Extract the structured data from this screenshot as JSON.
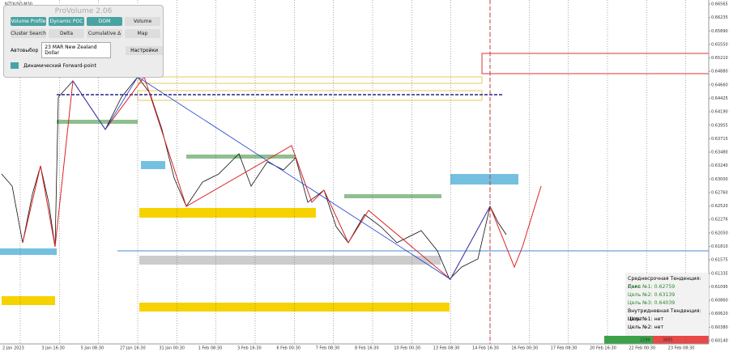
{
  "symbol": "NZDUSD,M30",
  "panel": {
    "title": "ProVolume 2.06",
    "buttons": [
      "Volume Profile",
      "Dynamic POC",
      "DOM",
      "Volume",
      "Cluster Search",
      "Delta",
      "Cumulative Δ",
      "Map"
    ],
    "auto_select": "Автовыбор",
    "instrument": "23 MAR New Zealand Dollar",
    "settings": "Настройки",
    "forward_point": "Динамический Forward-point"
  },
  "price_axis": [
    "0.66565",
    "0.66235",
    "0.65890",
    "0.65550",
    "0.65210",
    "0.64880",
    "0.64660",
    "0.64425",
    "0.64190",
    "0.63955",
    "0.63715",
    "0.63480",
    "0.63240",
    "0.63000",
    "0.62760",
    "0.62520",
    "0.62276",
    "0.62050",
    "0.61810",
    "0.61575",
    "0.61335",
    "0.61095",
    "0.60860",
    "0.60620",
    "0.60380",
    "0.60140"
  ],
  "time_axis": [
    "2 Jan 2023",
    "3 Jan 16:30",
    "5 Jan 08:30",
    "27 Jan 16:30",
    "31 Jan 00:30",
    "1 Feb 08:30",
    "3 Feb 16:30",
    "6 Feb 00:30",
    "7 Feb 08:30",
    "8 Feb 16:30",
    "10 Feb 00:30",
    "13 Feb 08:30",
    "14 Feb 16:30",
    "16 Feb 00:30",
    "17 Feb 08:30",
    "20 Feb 16:30",
    "22 Feb 00:30",
    "23 Feb 08:30"
  ],
  "info": [
    "Среднесрочная Тенденция: Лонг",
    "Цель №1: 0.62759",
    "Цель №2: 0.63139",
    "Цель №3: 0.64039",
    "Внутридневная Тенденция: Шорт",
    "Цель №1: нет",
    "Цель №2: нет"
  ],
  "footer": [
    "2294",
    "3885"
  ]
}
